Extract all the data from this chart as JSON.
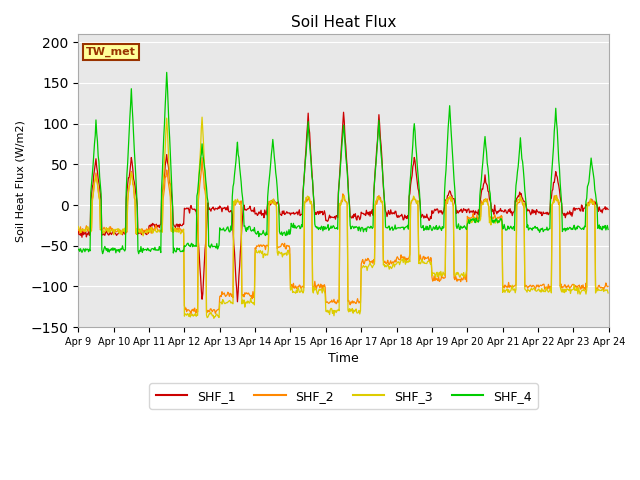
{
  "title": "Soil Heat Flux",
  "ylabel": "Soil Heat Flux (W/m2)",
  "xlabel": "Time",
  "ylim": [
    -150,
    210
  ],
  "yticks": [
    -150,
    -100,
    -50,
    0,
    50,
    100,
    150,
    200
  ],
  "line_colors": {
    "SHF_1": "#cc0000",
    "SHF_2": "#ff8800",
    "SHF_3": "#ddcc00",
    "SHF_4": "#00cc00"
  },
  "legend_labels": [
    "SHF_1",
    "SHF_2",
    "SHF_3",
    "SHF_4"
  ],
  "station_label": "TW_met",
  "station_label_bg": "#ffff99",
  "station_label_border": "#993300",
  "plot_bg": "#e8e8e8",
  "fig_bg": "#ffffff",
  "start_day": 9,
  "end_day": 24,
  "n_days": 15,
  "samples_per_day": 48
}
